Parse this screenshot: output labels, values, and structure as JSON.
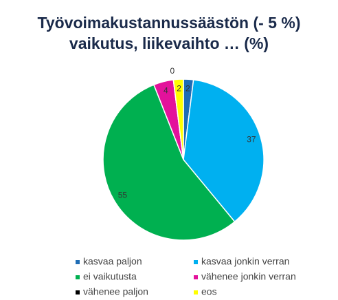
{
  "chart_data": {
    "type": "pie",
    "title": "Työvoimakustannussäästön (- 5 %) vaikutus, liikevaihto … (%)",
    "categories": [
      "kasvaa paljon",
      "kasvaa jonkin verran",
      "ei vaikutusta",
      "vähenee jonkin verran",
      "vähenee paljon",
      "eos"
    ],
    "values": [
      2,
      37,
      55,
      4,
      0,
      2
    ],
    "colors": [
      "#1f6db5",
      "#00b0f0",
      "#00b050",
      "#e3129b",
      "#000000",
      "#ffff00"
    ],
    "legend": "bottom"
  }
}
